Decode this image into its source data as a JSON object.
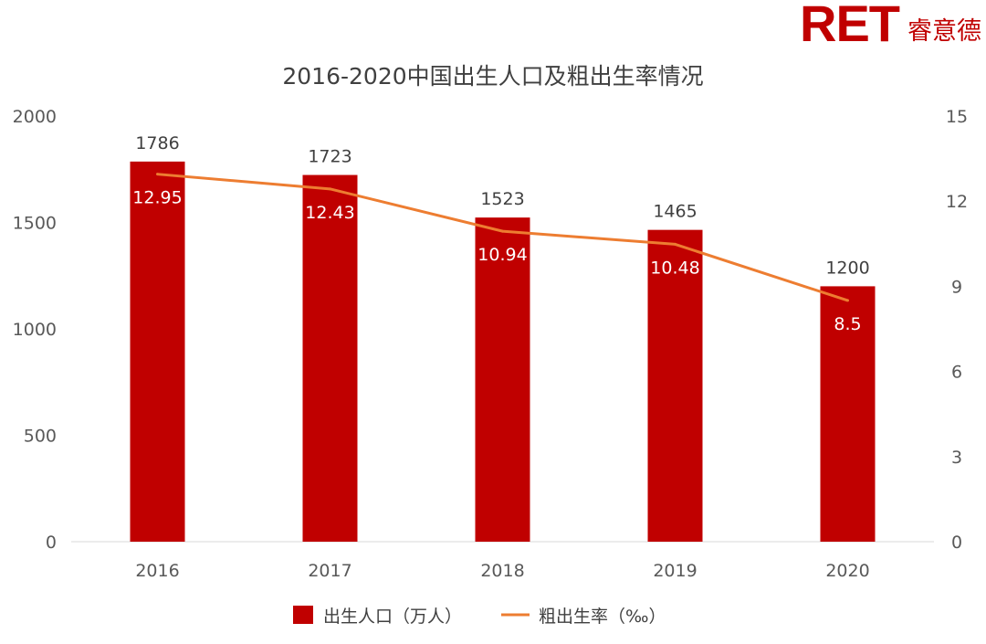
{
  "logo": {
    "brand": "RET",
    "brand_cn": "睿意德"
  },
  "chart_data": {
    "type": "bar",
    "title": "2016-2020中国出生人口及粗出生率情况",
    "categories": [
      "2016",
      "2017",
      "2018",
      "2019",
      "2020"
    ],
    "series": [
      {
        "name": "出生人口（万人）",
        "type": "bar",
        "axis": "left",
        "values": [
          1786,
          1723,
          1523,
          1465,
          1200
        ],
        "color": "#c00000"
      },
      {
        "name": "粗出生率（‰）",
        "type": "line",
        "axis": "right",
        "values": [
          12.95,
          12.43,
          10.94,
          10.48,
          8.5
        ],
        "color": "#ed7d31"
      }
    ],
    "y_left": {
      "ylim": [
        0,
        2000
      ],
      "ticks": [
        "0",
        "500",
        "1000",
        "1500",
        "2000"
      ]
    },
    "y_right": {
      "ylim": [
        0,
        15
      ],
      "ticks": [
        "0",
        "3",
        "6",
        "9",
        "12",
        "15"
      ]
    },
    "bar_labels": [
      "1786",
      "1723",
      "1523",
      "1465",
      "1200"
    ],
    "line_labels": [
      "12.95",
      "12.43",
      "10.94",
      "10.48",
      "8.5"
    ],
    "grid": false,
    "legend_position": "bottom"
  }
}
